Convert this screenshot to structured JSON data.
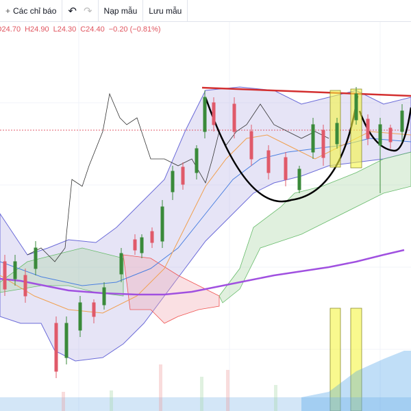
{
  "toolbar": {
    "indicators": "Các chỉ báo",
    "load_template": "Nạp mẫu",
    "save_template": "Lưu mẫu"
  },
  "legend": {
    "open": "O24.70",
    "high": "H24.90",
    "low": "L24.30",
    "close": "C24.40",
    "change": "−0.20 (−0.81%)"
  }
}
